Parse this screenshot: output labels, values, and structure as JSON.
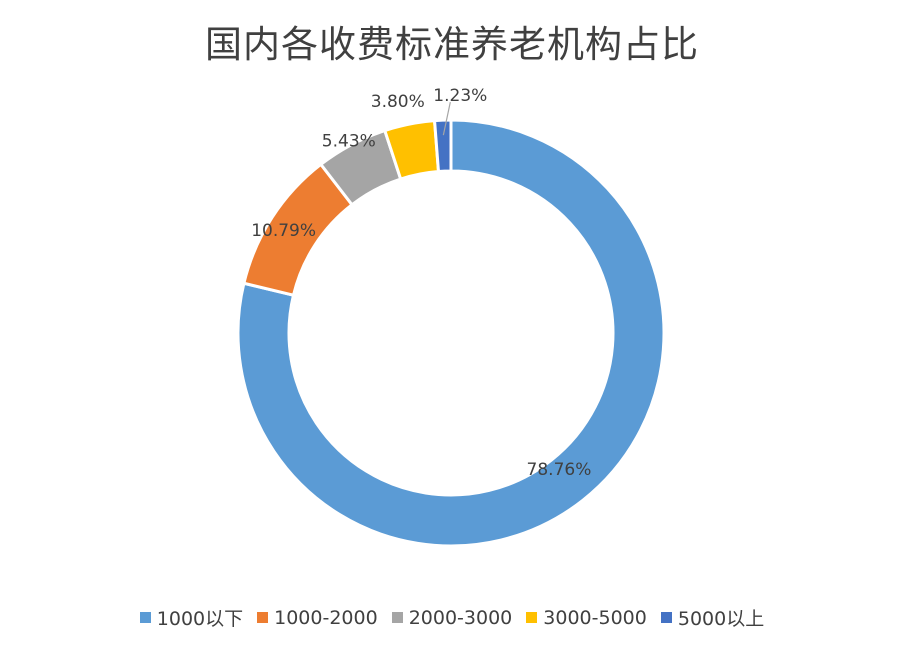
{
  "chart_data": {
    "type": "pie",
    "subtype": "donut",
    "title": "国内各收费标准养老机构占比",
    "categories": [
      "1000以下",
      "1000-2000",
      "2000-3000",
      "3000-5000",
      "5000以上"
    ],
    "values": [
      78.76,
      10.79,
      5.43,
      3.8,
      1.23
    ],
    "data_labels": [
      "78.76%",
      "10.79%",
      "5.43%",
      "3.80%",
      "1.23%"
    ],
    "colors": [
      "#5B9BD5",
      "#ED7D31",
      "#A5A5A5",
      "#FFC000",
      "#4472C4"
    ],
    "legend_position": "bottom"
  }
}
